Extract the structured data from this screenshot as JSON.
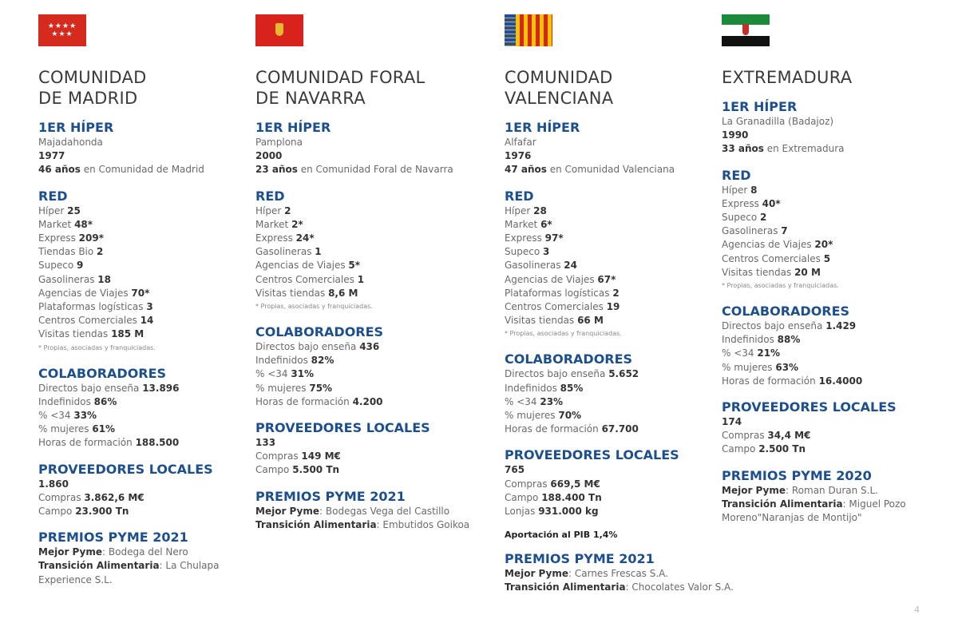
{
  "regions": [
    {
      "key": "madrid",
      "flag": "madrid-flag",
      "title": [
        "COMUNIDAD",
        "DE MADRID"
      ],
      "sections": [
        {
          "heading": "1ER HÍPER",
          "lines": [
            [
              [
                "Majadahonda",
                false
              ]
            ],
            [
              [
                "1977",
                true
              ]
            ],
            [
              [
                "46 años",
                true
              ],
              [
                " en Comunidad de Madrid",
                false
              ]
            ]
          ]
        },
        {
          "heading": "RED",
          "lines": [
            [
              [
                "Híper ",
                false
              ],
              [
                "25",
                true
              ]
            ],
            [
              [
                "Market ",
                false
              ],
              [
                "48*",
                true
              ]
            ],
            [
              [
                "Express ",
                false
              ],
              [
                "209*",
                true
              ]
            ],
            [
              [
                "Tiendas Bio ",
                false
              ],
              [
                "2",
                true
              ]
            ],
            [
              [
                "Supeco ",
                false
              ],
              [
                "9",
                true
              ]
            ],
            [
              [
                "Gasolineras ",
                false
              ],
              [
                "18",
                true
              ]
            ],
            [
              [
                "Agencias de Viajes ",
                false
              ],
              [
                "70*",
                true
              ]
            ],
            [
              [
                "Plataformas logísticas ",
                false
              ],
              [
                "3",
                true
              ]
            ],
            [
              [
                "Centros Comerciales ",
                false
              ],
              [
                "14",
                true
              ]
            ],
            [
              [
                "Visitas tiendas ",
                false
              ],
              [
                "185 M",
                true
              ]
            ]
          ],
          "note": "* Propias, asociadas y franquiciadas."
        },
        {
          "heading": "COLABORADORES",
          "lines": [
            [
              [
                "Directos bajo enseña ",
                false
              ],
              [
                "13.896",
                true
              ]
            ],
            [
              [
                "Indefinidos ",
                false
              ],
              [
                "86%",
                true
              ]
            ],
            [
              [
                "% <34 ",
                false
              ],
              [
                "33%",
                true
              ]
            ],
            [
              [
                "% mujeres ",
                false
              ],
              [
                "61%",
                true
              ]
            ],
            [
              [
                "Horas de formación ",
                false
              ],
              [
                "188.500",
                true
              ]
            ]
          ]
        },
        {
          "heading": "PROVEEDORES LOCALES",
          "lines": [
            [
              [
                "1.860",
                true
              ]
            ],
            [
              [
                "Compras ",
                false
              ],
              [
                "3.862,6 M€",
                true
              ]
            ],
            [
              [
                "Campo ",
                false
              ],
              [
                "23.900 Tn",
                true
              ]
            ]
          ]
        },
        {
          "heading": "PREMIOS PYME 2021",
          "lines": [
            [
              [
                "Mejor Pyme",
                true
              ],
              [
                ": Bodega del Nero",
                false
              ]
            ],
            [
              [
                "Transición Alimentaria",
                true
              ],
              [
                ": La Chulapa",
                false
              ]
            ],
            [
              [
                "Experience S.L.",
                false
              ]
            ]
          ]
        }
      ]
    },
    {
      "key": "navarra",
      "flag": "navarra-flag",
      "title": [
        "COMUNIDAD FORAL",
        "DE NAVARRA"
      ],
      "sections": [
        {
          "heading": "1ER HÍPER",
          "lines": [
            [
              [
                "Pamplona",
                false
              ]
            ],
            [
              [
                "2000",
                true
              ]
            ],
            [
              [
                "23 años",
                true
              ],
              [
                " en Comunidad Foral de Navarra",
                false
              ]
            ]
          ]
        },
        {
          "heading": "RED",
          "lines": [
            [
              [
                "Híper ",
                false
              ],
              [
                "2",
                true
              ]
            ],
            [
              [
                "Market ",
                false
              ],
              [
                "2*",
                true
              ]
            ],
            [
              [
                "Express ",
                false
              ],
              [
                "24*",
                true
              ]
            ],
            [
              [
                "Gasolineras ",
                false
              ],
              [
                "1",
                true
              ]
            ],
            [
              [
                "Agencias de Viajes ",
                false
              ],
              [
                "5*",
                true
              ]
            ],
            [
              [
                "Centros Comerciales ",
                false
              ],
              [
                "1",
                true
              ]
            ],
            [
              [
                "Visitas tiendas ",
                false
              ],
              [
                "8,6 M",
                true
              ]
            ]
          ],
          "note": "* Propias, asociadas y franquiciadas."
        },
        {
          "heading": "COLABORADORES",
          "lines": [
            [
              [
                "Directos bajo enseña ",
                false
              ],
              [
                "436",
                true
              ]
            ],
            [
              [
                "Indefinidos ",
                false
              ],
              [
                "82%",
                true
              ]
            ],
            [
              [
                "% <34 ",
                false
              ],
              [
                "31%",
                true
              ]
            ],
            [
              [
                "% mujeres ",
                false
              ],
              [
                "75%",
                true
              ]
            ],
            [
              [
                "Horas de formación ",
                false
              ],
              [
                "4.200",
                true
              ]
            ]
          ]
        },
        {
          "heading": "PROVEEDORES LOCALES",
          "lines": [
            [
              [
                "133",
                true
              ]
            ],
            [
              [
                "Compras ",
                false
              ],
              [
                "149 M€",
                true
              ]
            ],
            [
              [
                "Campo ",
                false
              ],
              [
                "5.500 Tn",
                true
              ]
            ]
          ]
        },
        {
          "heading": "PREMIOS PYME 2021",
          "lines": [
            [
              [
                "Mejor Pyme",
                true
              ],
              [
                ": Bodegas Vega del Castillo",
                false
              ]
            ],
            [
              [
                "Transición Alimentaria",
                true
              ],
              [
                ": Embutidos Goikoa",
                false
              ]
            ]
          ]
        }
      ]
    },
    {
      "key": "valencia",
      "flag": "valencia-flag",
      "title": [
        "COMUNIDAD",
        "VALENCIANA"
      ],
      "sections": [
        {
          "heading": "1ER HÍPER",
          "lines": [
            [
              [
                "Alfafar",
                false
              ]
            ],
            [
              [
                "1976",
                true
              ]
            ],
            [
              [
                "47 años",
                true
              ],
              [
                " en Comunidad Valenciana",
                false
              ]
            ]
          ]
        },
        {
          "heading": "RED",
          "lines": [
            [
              [
                "Híper ",
                false
              ],
              [
                "28",
                true
              ]
            ],
            [
              [
                "Market ",
                false
              ],
              [
                "6*",
                true
              ]
            ],
            [
              [
                "Express ",
                false
              ],
              [
                "97*",
                true
              ]
            ],
            [
              [
                "Supeco ",
                false
              ],
              [
                "3",
                true
              ]
            ],
            [
              [
                "Gasolineras ",
                false
              ],
              [
                "24",
                true
              ]
            ],
            [
              [
                "Agencias de Viajes ",
                false
              ],
              [
                "67*",
                true
              ]
            ],
            [
              [
                "Plataformas logísticas ",
                false
              ],
              [
                "2",
                true
              ]
            ],
            [
              [
                "Centros Comerciales ",
                false
              ],
              [
                "19",
                true
              ]
            ],
            [
              [
                "Visitas tiendas ",
                false
              ],
              [
                "66 M",
                true
              ]
            ]
          ],
          "note": "* Propias, asociadas y franquiciadas."
        },
        {
          "heading": "COLABORADORES",
          "lines": [
            [
              [
                "Directos bajo enseña ",
                false
              ],
              [
                "5.652",
                true
              ]
            ],
            [
              [
                "Indefinidos ",
                false
              ],
              [
                "85%",
                true
              ]
            ],
            [
              [
                "% <34 ",
                false
              ],
              [
                "23%",
                true
              ]
            ],
            [
              [
                "% mujeres ",
                false
              ],
              [
                "70%",
                true
              ]
            ],
            [
              [
                "Horas de formación ",
                false
              ],
              [
                "67.700",
                true
              ]
            ]
          ]
        },
        {
          "heading": "PROVEEDORES LOCALES",
          "lines": [
            [
              [
                "765",
                true
              ]
            ],
            [
              [
                "Compras ",
                false
              ],
              [
                "669,5 M€",
                true
              ]
            ],
            [
              [
                "Campo ",
                false
              ],
              [
                "188.400 Tn",
                true
              ]
            ],
            [
              [
                "Lonjas ",
                false
              ],
              [
                "931.000 kg",
                true
              ]
            ]
          ],
          "after": "Aportación al PIB 1,4%"
        },
        {
          "heading": "PREMIOS PYME 2021",
          "lines": [
            [
              [
                "Mejor Pyme",
                true
              ],
              [
                ": Carnes Frescas S.A.",
                false
              ]
            ],
            [
              [
                "Transición Alimentaria",
                true
              ],
              [
                ": Chocolates Valor S.A.",
                false
              ]
            ]
          ]
        }
      ]
    },
    {
      "key": "extremadura",
      "flag": "extremadura-flag",
      "title": [
        "EXTREMADURA"
      ],
      "sections": [
        {
          "heading": "1ER HÍPER",
          "lines": [
            [
              [
                "La Granadilla (Badajoz)",
                false
              ]
            ],
            [
              [
                "1990",
                true
              ]
            ],
            [
              [
                "33 años",
                true
              ],
              [
                " en Extremadura",
                false
              ]
            ]
          ]
        },
        {
          "heading": "RED",
          "lines": [
            [
              [
                "Híper ",
                false
              ],
              [
                "8",
                true
              ]
            ],
            [
              [
                "Express ",
                false
              ],
              [
                "40*",
                true
              ]
            ],
            [
              [
                "Supeco ",
                false
              ],
              [
                "2",
                true
              ]
            ],
            [
              [
                "Gasolineras ",
                false
              ],
              [
                "7",
                true
              ]
            ],
            [
              [
                "Agencias de Viajes ",
                false
              ],
              [
                "20*",
                true
              ]
            ],
            [
              [
                "Centros Comerciales ",
                false
              ],
              [
                "5",
                true
              ]
            ],
            [
              [
                "Visitas tiendas ",
                false
              ],
              [
                "20 M",
                true
              ]
            ]
          ],
          "note": "* Propias, asociadas y franquiciadas."
        },
        {
          "heading": "COLABORADORES",
          "lines": [
            [
              [
                "Directos bajo enseña ",
                false
              ],
              [
                "1.429",
                true
              ]
            ],
            [
              [
                "Indefinidos ",
                false
              ],
              [
                "88%",
                true
              ]
            ],
            [
              [
                "% <34 ",
                false
              ],
              [
                "21%",
                true
              ]
            ],
            [
              [
                "% mujeres ",
                false
              ],
              [
                "63%",
                true
              ]
            ],
            [
              [
                "Horas de formación ",
                false
              ],
              [
                "16.4000",
                true
              ]
            ]
          ]
        },
        {
          "heading": "PROVEEDORES LOCALES",
          "lines": [
            [
              [
                "174",
                true
              ]
            ],
            [
              [
                "Compras ",
                false
              ],
              [
                "34,4 M€",
                true
              ]
            ],
            [
              [
                "Campo ",
                false
              ],
              [
                "2.500 Tn",
                true
              ]
            ]
          ]
        },
        {
          "heading": "PREMIOS PYME 2020",
          "lines": [
            [
              [
                "Mejor Pyme",
                true
              ],
              [
                ": Roman Duran S.L.",
                false
              ]
            ],
            [
              [
                "Transición Alimentaria",
                true
              ],
              [
                ": Miguel  Pozo",
                false
              ]
            ],
            [
              [
                "Moreno\"Naranjas de Montijo\"",
                false
              ]
            ]
          ]
        }
      ]
    }
  ],
  "page_number": "4",
  "colors": {
    "heading": "#1d4f8c",
    "text": "#6a6a6a",
    "bold": "#333333"
  }
}
